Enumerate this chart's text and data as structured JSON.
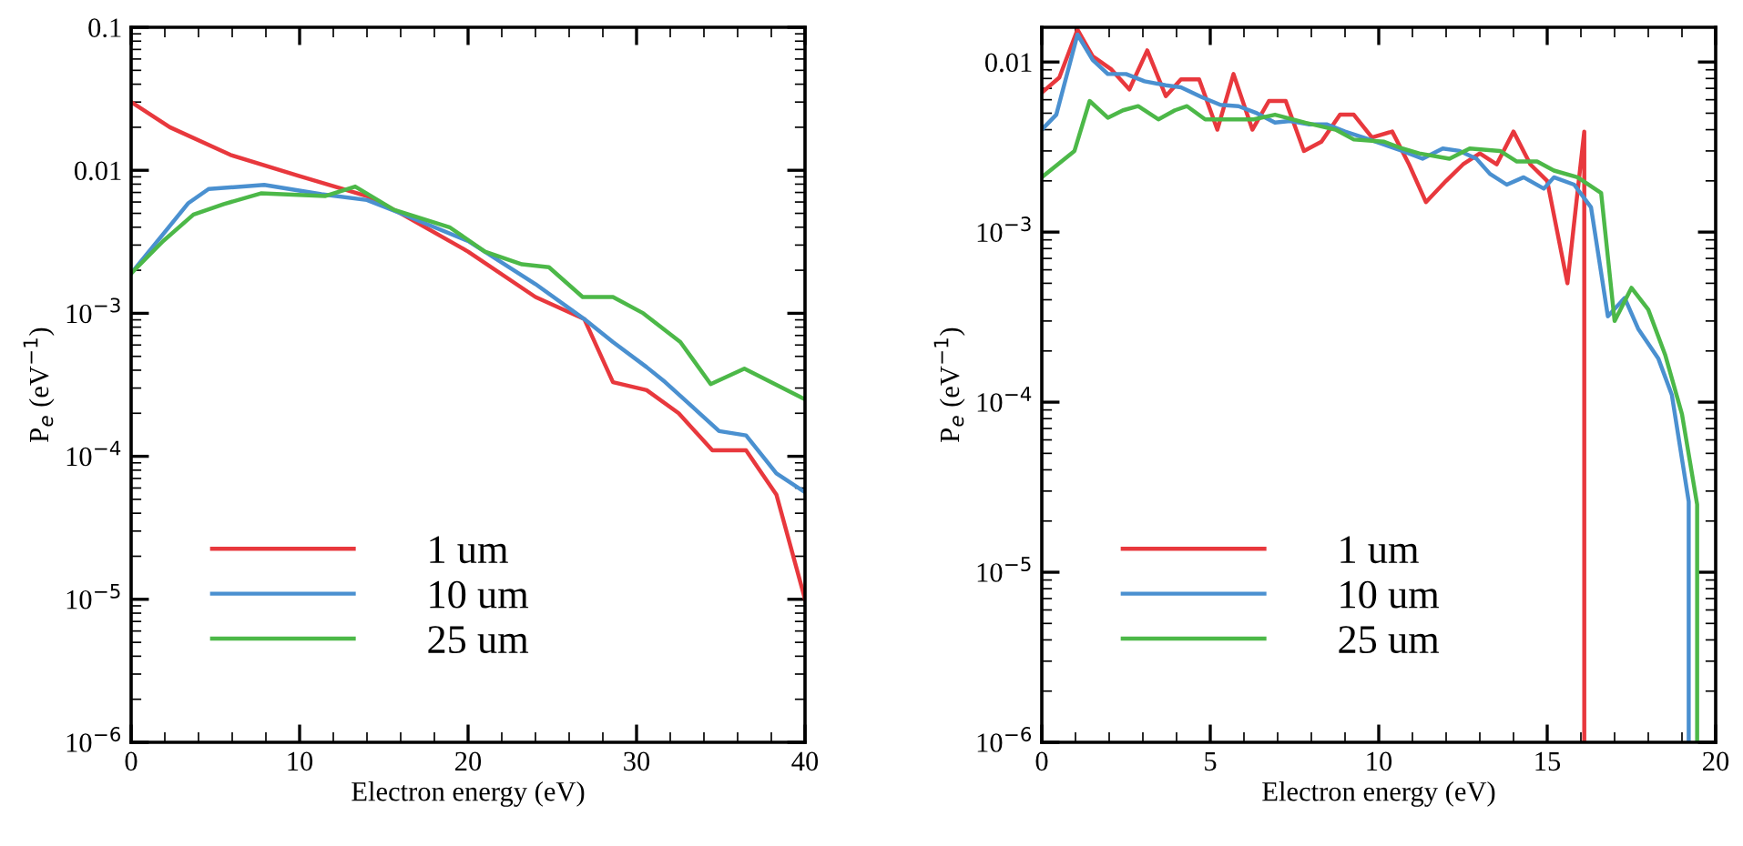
{
  "chart_data": [
    {
      "type": "line",
      "xlabel": "Electron energy (eV)",
      "ylabel": "P$_{e}$ (eV$^{−1}$)",
      "log": "y",
      "legend": "bottom left",
      "grid": false,
      "xlim": [
        0,
        40
      ],
      "xticks": [
        0,
        10,
        20,
        30,
        40
      ],
      "ylim": [
        1e-06,
        0.1
      ],
      "yticks": [
        {
          "value": 1e-06,
          "label": "10$^{−6}$"
        },
        {
          "value": 1e-05,
          "label": "10$^{−5}$"
        },
        {
          "value": 0.0001,
          "label": "10$^{−4}$"
        },
        {
          "value": 0.001,
          "label": "10$^{−3}$"
        },
        {
          "value": 0.01,
          "label": "0.01"
        },
        {
          "value": 0.1,
          "label": "0.1"
        }
      ],
      "series": [
        {
          "name": "1 um",
          "color": "#e8383d",
          "x": [
            0,
            2.3,
            5.9,
            10,
            14,
            16,
            20,
            24,
            26.9,
            28.6,
            30.6,
            32.5,
            34.5,
            36.5,
            38.3,
            40
          ],
          "values": [
            0.03,
            0.02,
            0.0128,
            0.0091,
            0.0066,
            0.005,
            0.0027,
            0.0013,
            0.00091,
            0.00033,
            0.00029,
            0.0002,
            0.00011,
            0.00011,
            5.4e-05,
            1e-05
          ]
        },
        {
          "name": "10 um",
          "color": "#4a90d0",
          "x": [
            0,
            3.4,
            4.6,
            7.9,
            11.3,
            14,
            16,
            20,
            24,
            26.9,
            28.6,
            30.6,
            31.7,
            34.9,
            36.5,
            38.3,
            40
          ],
          "values": [
            0.0019,
            0.0059,
            0.0074,
            0.0079,
            0.0068,
            0.0062,
            0.005,
            0.0032,
            0.0016,
            0.00091,
            0.00063,
            0.00042,
            0.00033,
            0.00015,
            0.00014,
            7.6e-05,
            5.6e-05
          ]
        },
        {
          "name": "25 um",
          "color": "#4cb848",
          "x": [
            0,
            1.9,
            3.7,
            5.5,
            7.7,
            11.5,
            13.3,
            15.6,
            18.9,
            21,
            23.2,
            24.8,
            26.8,
            28.6,
            30.4,
            32.6,
            34.4,
            36.4,
            40
          ],
          "values": [
            0.0019,
            0.0032,
            0.0049,
            0.0058,
            0.0069,
            0.0066,
            0.0077,
            0.0053,
            0.004,
            0.0027,
            0.0022,
            0.0021,
            0.0013,
            0.0013,
            0.001,
            0.00063,
            0.00032,
            0.00041,
            0.00025
          ]
        }
      ]
    },
    {
      "type": "line",
      "xlabel": "Electron energy (eV)",
      "ylabel": "P$_{e}$ (eV$^{−1}$)",
      "log": "y",
      "legend": "bottom left",
      "grid": false,
      "xlim": [
        0,
        20
      ],
      "xticks": [
        0,
        5,
        10,
        15,
        20
      ],
      "ylim": [
        1e-06,
        0.016
      ],
      "yticks": [
        {
          "value": 1e-06,
          "label": "10$^{−6}$"
        },
        {
          "value": 1e-05,
          "label": "10$^{−5}$"
        },
        {
          "value": 0.0001,
          "label": "10$^{−4}$"
        },
        {
          "value": 0.001,
          "label": "10$^{−3}$"
        },
        {
          "value": 0.01,
          "label": "0.01"
        }
      ],
      "series": [
        {
          "name": "1 um",
          "color": "#e8383d",
          "x": [
            0,
            0.52,
            1.06,
            1.51,
            2.05,
            2.6,
            3.13,
            3.68,
            4.13,
            4.67,
            5.21,
            5.69,
            6.25,
            6.74,
            7.24,
            7.78,
            8.3,
            8.85,
            9.26,
            9.8,
            10.4,
            10.9,
            11.4,
            12.0,
            12.5,
            13.0,
            13.5,
            14.0,
            14.5,
            15.0,
            15.6,
            16.1,
            16.1
          ],
          "values": [
            0.0066,
            0.0081,
            0.0155,
            0.0108,
            0.0091,
            0.0069,
            0.0117,
            0.0063,
            0.0079,
            0.0079,
            0.004,
            0.0085,
            0.004,
            0.0059,
            0.0059,
            0.003,
            0.0034,
            0.0049,
            0.0049,
            0.0036,
            0.0039,
            0.0025,
            0.0015,
            0.002,
            0.0025,
            0.0029,
            0.0025,
            0.0039,
            0.0025,
            0.002,
            0.0005,
            0.0039,
            1e-06
          ]
        },
        {
          "name": "10 um",
          "color": "#4a90d0",
          "x": [
            0,
            0.43,
            1.06,
            1.51,
            1.96,
            2.5,
            3.05,
            3.68,
            4.13,
            4.76,
            5.3,
            5.84,
            6.38,
            6.92,
            7.37,
            7.91,
            8.45,
            9.0,
            9.54,
            10.1,
            10.7,
            11.3,
            11.9,
            12.4,
            12.9,
            13.3,
            13.8,
            14.3,
            14.9,
            15.2,
            15.8,
            16.3,
            16.8,
            17.3,
            17.7,
            18.3,
            18.7,
            19.2,
            19.2
          ],
          "values": [
            0.004,
            0.0049,
            0.0145,
            0.0103,
            0.0085,
            0.0085,
            0.0077,
            0.0073,
            0.0071,
            0.0062,
            0.0056,
            0.0055,
            0.005,
            0.0044,
            0.0045,
            0.0043,
            0.0043,
            0.0039,
            0.0036,
            0.0033,
            0.003,
            0.0027,
            0.0031,
            0.003,
            0.0027,
            0.0022,
            0.0019,
            0.0021,
            0.0018,
            0.0021,
            0.0019,
            0.0014,
            0.00032,
            0.00041,
            0.00027,
            0.00018,
            0.00011,
            2.6e-05,
            1e-06
          ]
        },
        {
          "name": "25 um",
          "color": "#4cb848",
          "x": [
            0,
            0.97,
            1.42,
            1.96,
            2.41,
            2.86,
            3.46,
            3.95,
            4.31,
            4.85,
            5.3,
            6.29,
            6.92,
            7.82,
            8.72,
            9.26,
            10.16,
            10.7,
            11.2,
            12.1,
            12.7,
            13.6,
            14.1,
            14.7,
            15.2,
            15.9,
            16.6,
            17.0,
            17.5,
            18.0,
            18.5,
            19.0,
            19.45,
            19.45
          ],
          "values": [
            0.0021,
            0.003,
            0.0059,
            0.0047,
            0.0052,
            0.0055,
            0.0046,
            0.0052,
            0.0055,
            0.0046,
            0.0046,
            0.0046,
            0.0049,
            0.0044,
            0.004,
            0.0035,
            0.0034,
            0.0031,
            0.0029,
            0.0027,
            0.0031,
            0.003,
            0.0026,
            0.0026,
            0.0023,
            0.0021,
            0.0017,
            0.0003,
            0.00047,
            0.00035,
            0.00019,
            8.5e-05,
            2.5e-05,
            1e-06
          ]
        }
      ]
    }
  ]
}
